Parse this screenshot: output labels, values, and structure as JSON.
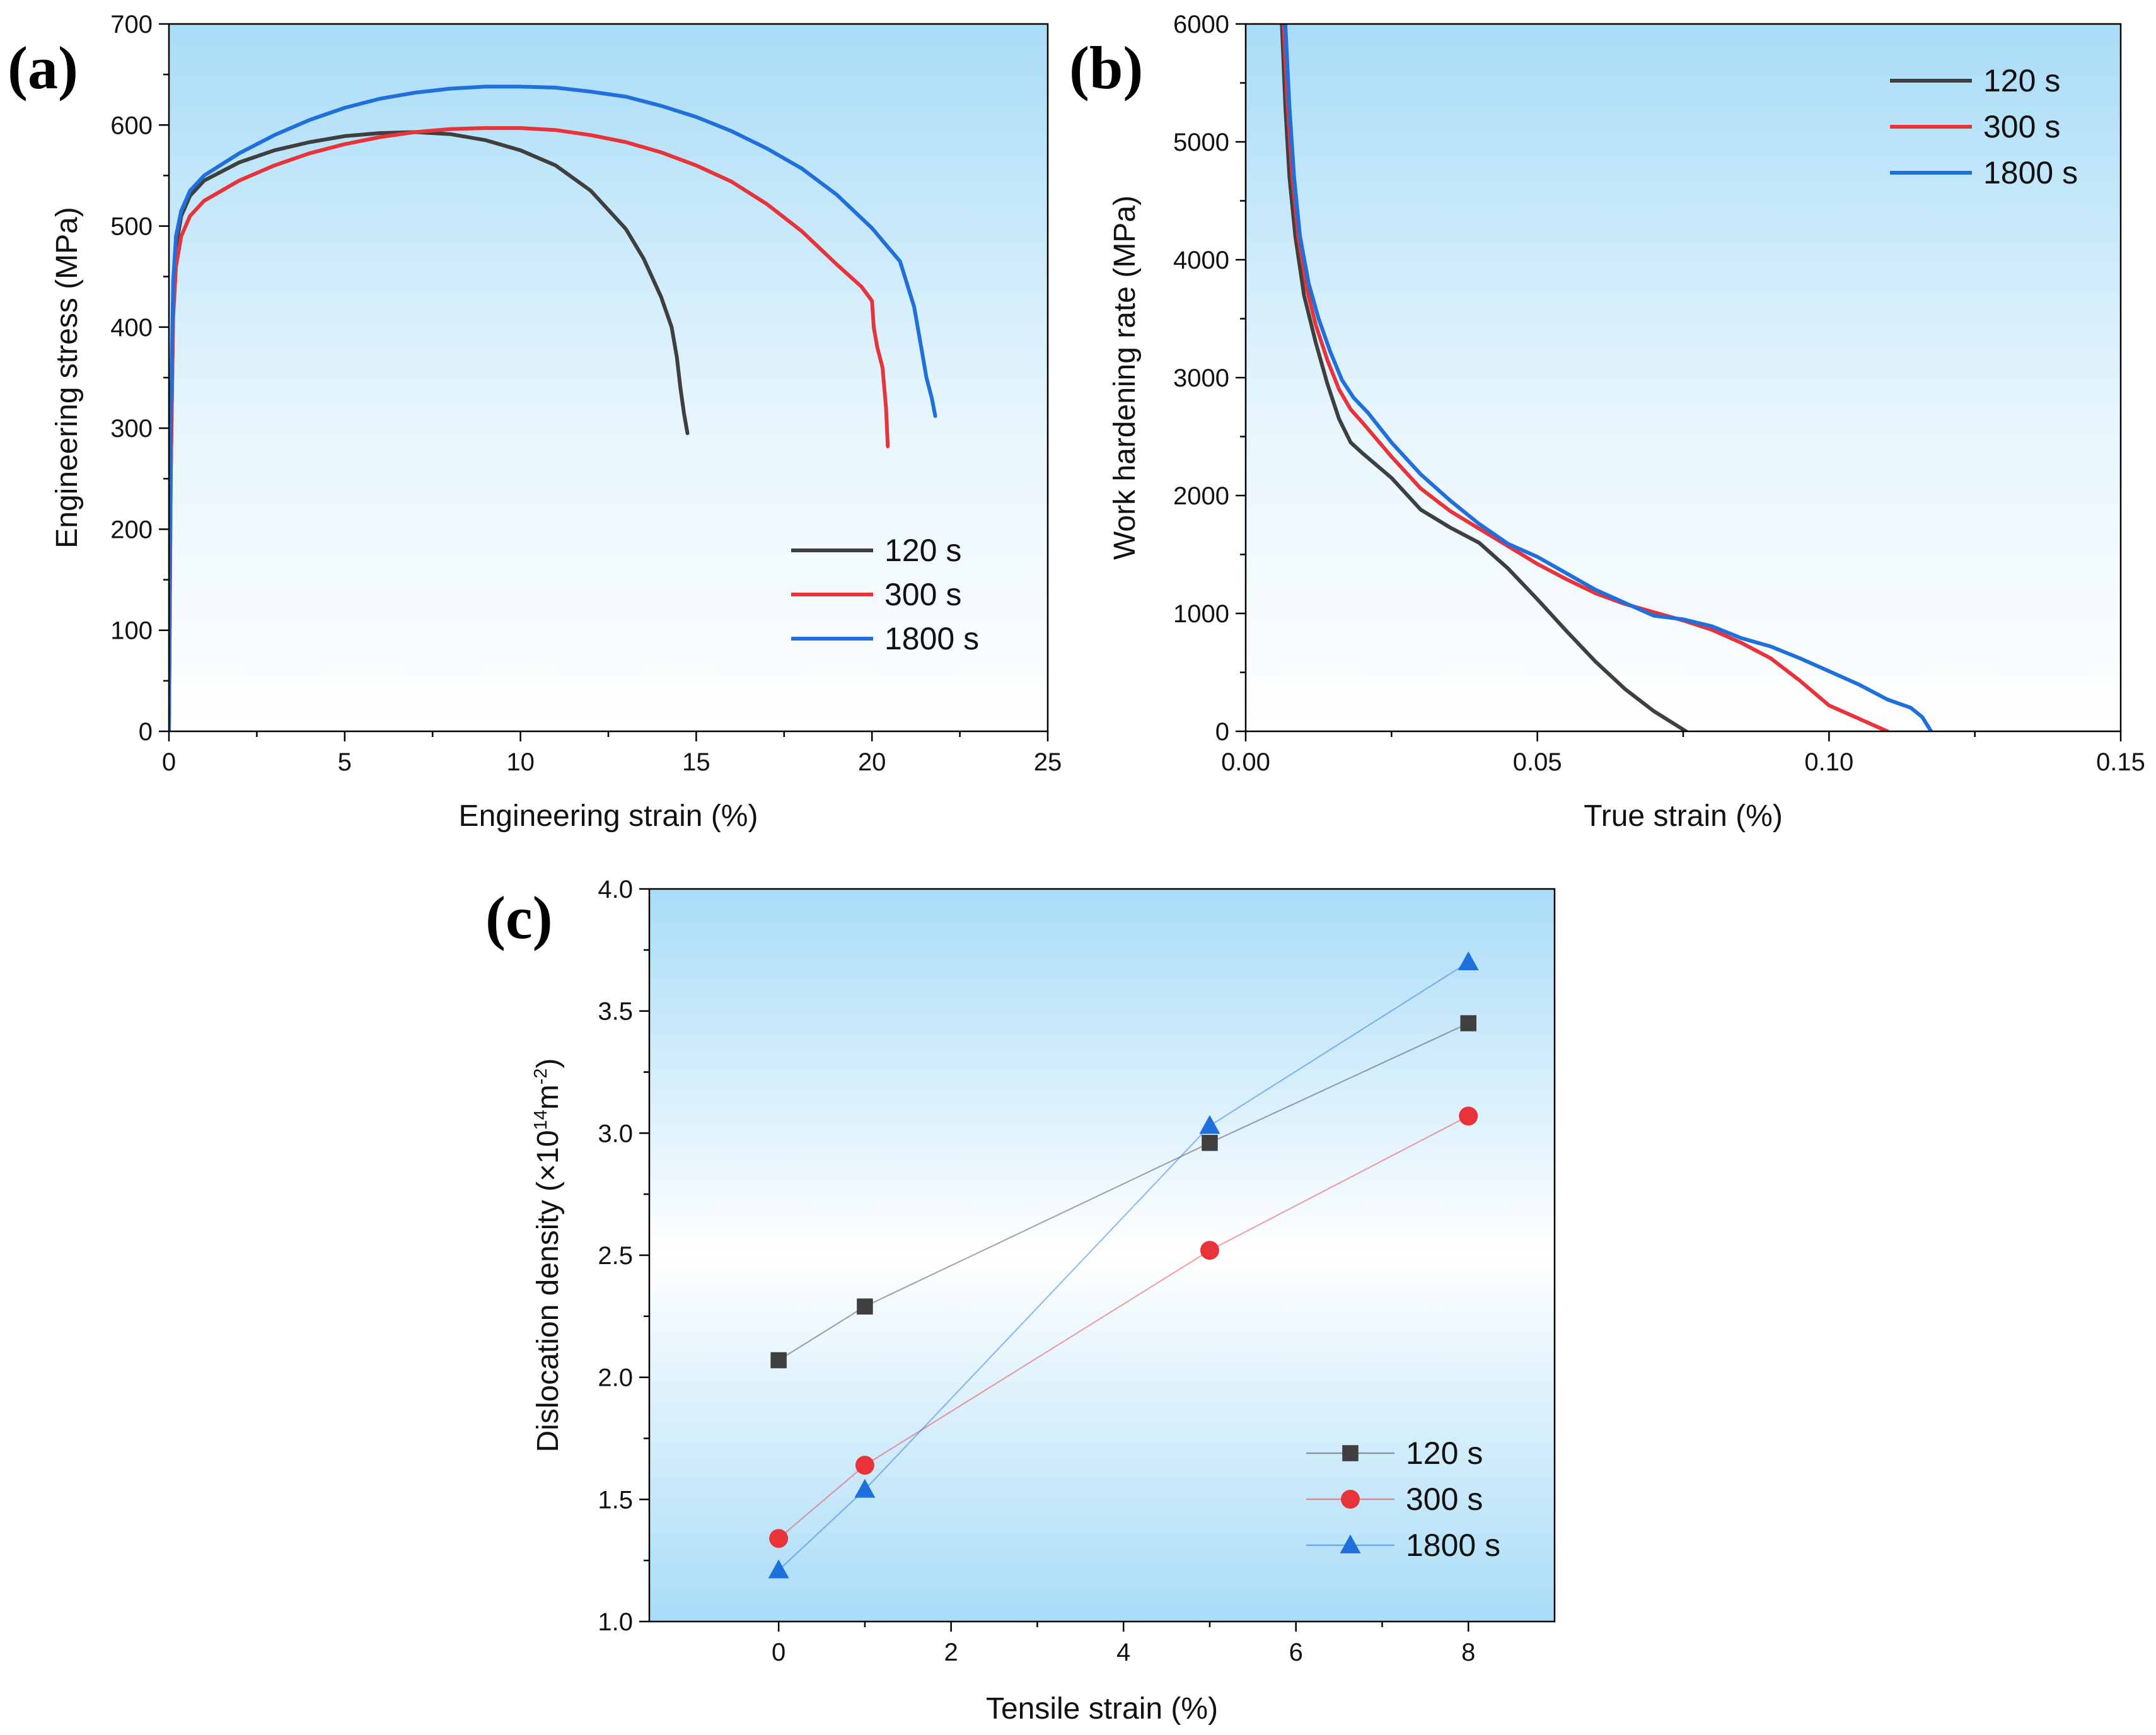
{
  "colors": {
    "s120": "#3f3f3f",
    "s300": "#e8333a",
    "s1800": "#1f6fdc",
    "bg_top": "#a8dcf7",
    "bg_mid": "#ffffff"
  },
  "chart_data": [
    {
      "id": "a",
      "panel_label": "(a)",
      "type": "line",
      "xlabel": "Engineering strain (%)",
      "ylabel": "Engineering stress (MPa)",
      "xlim": [
        0,
        25
      ],
      "ylim": [
        0,
        700
      ],
      "xticks": [
        "0",
        "5",
        "10",
        "15",
        "20",
        "25"
      ],
      "yticks": [
        "0",
        "100",
        "200",
        "300",
        "400",
        "500",
        "600",
        "700"
      ],
      "legend_position": "bottom-right",
      "series": [
        {
          "name": "120 s",
          "color": "#3f3f3f",
          "x": [
            0,
            0.05,
            0.12,
            0.2,
            0.35,
            0.6,
            1,
            2,
            3,
            4,
            5,
            6,
            7,
            8,
            9,
            10,
            11,
            12,
            13,
            13.5,
            14,
            14.3,
            14.45,
            14.55,
            14.65,
            14.75
          ],
          "y": [
            0,
            250,
            420,
            480,
            510,
            530,
            545,
            563,
            575,
            583,
            589,
            592,
            593,
            591,
            585,
            575,
            560,
            535,
            497,
            468,
            430,
            400,
            370,
            340,
            315,
            295
          ]
        },
        {
          "name": "300 s",
          "color": "#e8333a",
          "x": [
            0,
            0.05,
            0.12,
            0.2,
            0.35,
            0.6,
            1,
            2,
            3,
            4,
            5,
            6,
            7,
            8,
            9,
            10,
            11,
            12,
            13,
            14,
            15,
            16,
            17,
            18,
            19,
            19.7,
            20,
            20.05,
            20.15,
            20.3,
            20.4,
            20.45
          ],
          "y": [
            0,
            250,
            410,
            460,
            490,
            510,
            525,
            545,
            560,
            572,
            581,
            588,
            593,
            596,
            597,
            597,
            595,
            590,
            583,
            573,
            560,
            544,
            522,
            495,
            462,
            440,
            426,
            400,
            380,
            360,
            320,
            282
          ]
        },
        {
          "name": "1800 s",
          "color": "#1f6fdc",
          "x": [
            0,
            0.05,
            0.12,
            0.2,
            0.35,
            0.6,
            1,
            2,
            3,
            4,
            5,
            6,
            7,
            8,
            9,
            10,
            11,
            12,
            13,
            14,
            15,
            16,
            17,
            18,
            19,
            20,
            20.8,
            21.2,
            21.4,
            21.55,
            21.7,
            21.8
          ],
          "y": [
            0,
            300,
            445,
            490,
            515,
            535,
            550,
            572,
            590,
            605,
            617,
            626,
            632,
            636,
            638,
            638,
            637,
            633,
            628,
            619,
            608,
            594,
            577,
            557,
            531,
            498,
            465,
            420,
            380,
            350,
            330,
            312
          ]
        }
      ]
    },
    {
      "id": "b",
      "panel_label": "(b)",
      "type": "line",
      "xlabel": "True strain (%)",
      "ylabel": "Work hardening rate (MPa)",
      "xlim": [
        0,
        0.15
      ],
      "ylim": [
        0,
        6000
      ],
      "xticks": [
        "0.00",
        "0.05",
        "0.10",
        "0.15"
      ],
      "yticks": [
        "0",
        "1000",
        "2000",
        "3000",
        "4000",
        "5000",
        "6000"
      ],
      "legend_position": "top-right",
      "series": [
        {
          "name": "120 s",
          "color": "#3f3f3f",
          "x": [
            0.0062,
            0.0068,
            0.0075,
            0.0085,
            0.01,
            0.012,
            0.014,
            0.016,
            0.018,
            0.02,
            0.025,
            0.03,
            0.035,
            0.04,
            0.045,
            0.05,
            0.055,
            0.06,
            0.065,
            0.07,
            0.0755
          ],
          "y": [
            6000,
            5300,
            4700,
            4200,
            3700,
            3300,
            2950,
            2650,
            2450,
            2360,
            2150,
            1880,
            1730,
            1600,
            1380,
            1120,
            850,
            590,
            360,
            170,
            0
          ]
        },
        {
          "name": "300 s",
          "color": "#e8333a",
          "x": [
            0.0065,
            0.0072,
            0.008,
            0.009,
            0.0105,
            0.012,
            0.014,
            0.016,
            0.018,
            0.02,
            0.025,
            0.03,
            0.035,
            0.04,
            0.045,
            0.05,
            0.055,
            0.06,
            0.065,
            0.07,
            0.075,
            0.08,
            0.085,
            0.09,
            0.095,
            0.1,
            0.105,
            0.11
          ],
          "y": [
            6000,
            5300,
            4700,
            4200,
            3750,
            3450,
            3150,
            2900,
            2730,
            2620,
            2330,
            2060,
            1870,
            1720,
            1570,
            1420,
            1290,
            1170,
            1080,
            1010,
            940,
            860,
            750,
            620,
            430,
            220,
            110,
            0
          ]
        },
        {
          "name": "1800 s",
          "color": "#1f6fdc",
          "x": [
            0.0068,
            0.0075,
            0.0083,
            0.0093,
            0.0108,
            0.0125,
            0.0145,
            0.0165,
            0.0185,
            0.021,
            0.025,
            0.03,
            0.035,
            0.04,
            0.045,
            0.05,
            0.055,
            0.06,
            0.065,
            0.07,
            0.075,
            0.08,
            0.085,
            0.09,
            0.095,
            0.1,
            0.105,
            0.11,
            0.114,
            0.116,
            0.1175
          ],
          "y": [
            6000,
            5300,
            4700,
            4200,
            3800,
            3500,
            3220,
            2980,
            2830,
            2700,
            2450,
            2180,
            1960,
            1760,
            1590,
            1480,
            1340,
            1200,
            1090,
            980,
            950,
            890,
            790,
            720,
            620,
            510,
            400,
            270,
            200,
            120,
            0
          ]
        }
      ]
    },
    {
      "id": "c",
      "panel_label": "(c)",
      "type": "line",
      "xlabel": "Tensile strain (%)",
      "ylabel_prefix": "Dislocation density (×10",
      "ylabel_sup1": "14",
      "ylabel_mid": "m",
      "ylabel_sup2": "-2",
      "ylabel_suffix": ")",
      "xlim": [
        -1.5,
        9
      ],
      "ylim": [
        1.0,
        4.0
      ],
      "xticks": [
        "0",
        "2",
        "4",
        "6",
        "8"
      ],
      "yticks": [
        "1.0",
        "1.5",
        "2.0",
        "2.5",
        "3.0",
        "3.5",
        "4.0"
      ],
      "legend_position": "bottom-right",
      "series": [
        {
          "name": "120 s",
          "color": "#3f3f3f",
          "marker": "square",
          "x": [
            0,
            1,
            5,
            8
          ],
          "y": [
            2.07,
            2.29,
            2.96,
            3.45
          ]
        },
        {
          "name": "300 s",
          "color": "#e8333a",
          "marker": "circle",
          "x": [
            0,
            1,
            5,
            8
          ],
          "y": [
            1.34,
            1.64,
            2.52,
            3.07
          ]
        },
        {
          "name": "1800 s",
          "color": "#1f6fdc",
          "marker": "triangle",
          "x": [
            0,
            1,
            5,
            8
          ],
          "y": [
            1.21,
            1.54,
            3.03,
            3.7
          ]
        }
      ]
    }
  ]
}
